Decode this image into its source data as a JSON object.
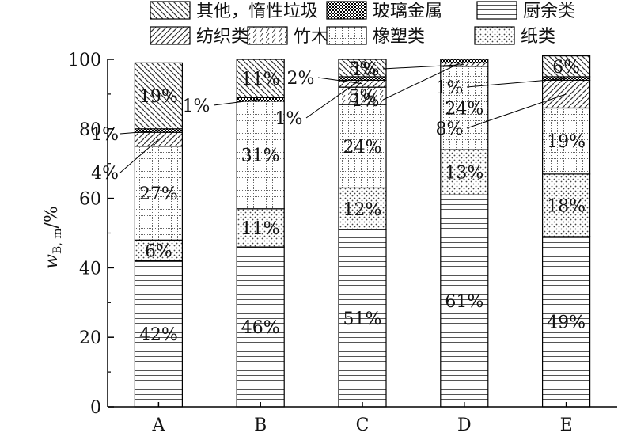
{
  "chart_data": {
    "type": "bar",
    "stacked": true,
    "title": "",
    "xlabel": "",
    "ylabel": "w_B, m/%",
    "ylabel_parts": {
      "main": "w",
      "sub": "B, m",
      "unit": "/%"
    },
    "ylim": [
      0,
      100
    ],
    "yticks": [
      0,
      20,
      40,
      60,
      80,
      100
    ],
    "grid": false,
    "legend_position": "top",
    "categories": [
      "A",
      "B",
      "C",
      "D",
      "E"
    ],
    "series": [
      {
        "name": "厨余类",
        "pattern": "hlines",
        "values": [
          42,
          46,
          51,
          61,
          49
        ],
        "labels": [
          "42%",
          "46%",
          "51%",
          "61%",
          "49%"
        ]
      },
      {
        "name": "纸类",
        "pattern": "dots",
        "values": [
          6,
          11,
          12,
          13,
          18
        ],
        "labels": [
          "6%",
          "11%",
          "12%",
          "13%",
          "18%"
        ]
      },
      {
        "name": "橡塑类",
        "pattern": "grid",
        "values": [
          27,
          31,
          24,
          24,
          19
        ],
        "labels": [
          "27%",
          "31%",
          "24%",
          "24%",
          "19%"
        ]
      },
      {
        "name": "竹木类",
        "pattern": "dashes",
        "values": [
          0,
          0,
          5,
          0,
          0
        ],
        "labels": [
          "",
          "",
          "5%",
          "",
          ""
        ]
      },
      {
        "name": "纺织类",
        "pattern": "diag",
        "values": [
          4,
          0,
          2,
          1,
          8
        ],
        "labels": [
          "4%",
          "",
          "2%",
          "1%",
          "8%"
        ]
      },
      {
        "name": "玻璃金属",
        "pattern": "checker",
        "values": [
          1,
          1,
          1,
          1,
          1
        ],
        "labels": [
          "1%",
          "1%",
          "1%",
          "1%",
          "1%"
        ]
      },
      {
        "name": "其他，惰性垃圾",
        "pattern": "backdiag",
        "values": [
          19,
          11,
          5,
          0,
          6
        ],
        "labels": [
          "19%",
          "11%",
          "5%",
          "",
          "6%"
        ]
      }
    ],
    "legend_order": [
      "其他，惰性垃圾",
      "玻璃金属",
      "厨余类",
      "纺织类",
      "竹木类",
      "橡塑类",
      "纸类"
    ]
  }
}
